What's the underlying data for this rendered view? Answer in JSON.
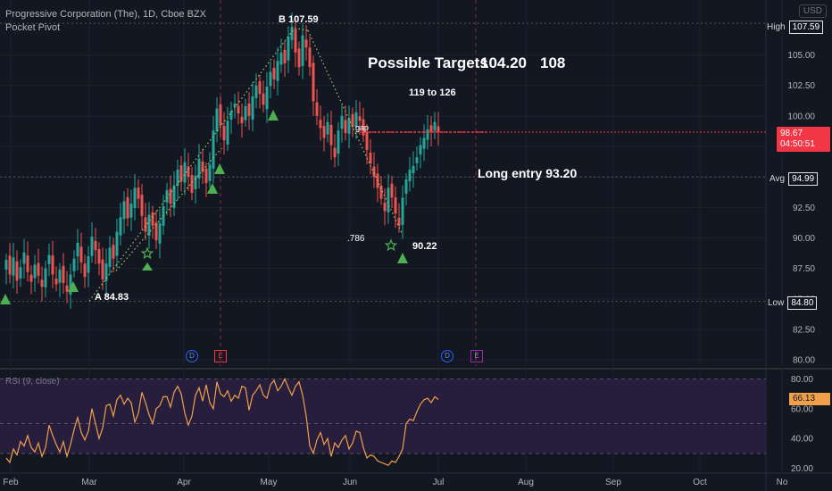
{
  "header": {
    "symbol_line": "Progressive Corporation (The), 1D, Cboe BZX",
    "indicator": "Pocket Pivot",
    "currency": "USD"
  },
  "annotations": {
    "targets_label": "Possible Targets",
    "target_1": "104.20",
    "target_2": "108",
    "target_range": "119 to 126",
    "long_entry": "Long entry 93.20",
    "point_b": "B  107.59",
    "point_a": "A  84.83",
    "fib": ".786",
    "low_point": "90.22",
    "gap": "gap"
  },
  "tags": {
    "high_label": "High",
    "high_value": "107.59",
    "avg_label": "Avg",
    "avg_value": "94.99",
    "low_label": "Low",
    "low_value": "84.80",
    "last_price": "98.67",
    "countdown": "04:50:51",
    "rsi_value": "66.13"
  },
  "events": {
    "dividend": "D",
    "earnings": "E"
  },
  "rsi": {
    "label": "RSI (9, close)",
    "upper": 80,
    "mid": 50,
    "lower": 30
  },
  "colors": {
    "background": "#131722",
    "up": "#26a69a",
    "down": "#ef5350",
    "signal": "#4caf50",
    "rsi_line": "#f0a04b",
    "rsi_band": "#2a1e3f"
  },
  "chart_data": {
    "type": "candlestick",
    "price_axis": {
      "ylim": [
        79.5,
        109.5
      ],
      "ticks": [
        "80.00",
        "82.50",
        "85.00",
        "87.50",
        "90.00",
        "92.50",
        "95.00",
        "97.50",
        "100.00",
        "102.50",
        "105.00"
      ]
    },
    "rsi_axis": {
      "ylim": [
        18,
        85
      ],
      "ticks": [
        "20.00",
        "40.00",
        "60.00",
        "80.00"
      ]
    },
    "x_labels": [
      "Feb",
      "Mar",
      "Apr",
      "May",
      "Jun",
      "Jul",
      "Aug",
      "Sep",
      "Oct",
      "No"
    ],
    "close": [
      88.2,
      87.0,
      88.4,
      86.5,
      87.6,
      88.8,
      87.2,
      86.4,
      87.8,
      86.9,
      86.0,
      87.5,
      88.6,
      87.0,
      86.2,
      87.4,
      86.3,
      85.6,
      87.0,
      88.3,
      89.6,
      88.0,
      86.8,
      88.5,
      90.1,
      89.0,
      87.9,
      86.6,
      87.9,
      89.2,
      88.3,
      90.5,
      91.7,
      93.0,
      91.6,
      92.8,
      94.1,
      93.2,
      91.8,
      90.5,
      91.9,
      91.0,
      89.8,
      91.2,
      92.6,
      93.9,
      92.8,
      94.3,
      95.6,
      94.6,
      96.2,
      95.0,
      93.7,
      95.1,
      96.5,
      95.4,
      94.5,
      96.0,
      98.8,
      100.6,
      99.2,
      98.0,
      99.6,
      100.4,
      101.0,
      100.2,
      99.4,
      100.8,
      100.0,
      101.6,
      102.5,
      101.8,
      100.9,
      102.4,
      103.6,
      103.0,
      104.5,
      105.2,
      104.3,
      106.5,
      107.3,
      105.2,
      104.0,
      106.6,
      105.6,
      104.0,
      101.2,
      100.0,
      99.0,
      98.2,
      99.5,
      97.6,
      96.6,
      98.8,
      100.0,
      98.6,
      99.8,
      99.1,
      100.3,
      99.6,
      98.4,
      97.2,
      96.1,
      95.0,
      94.1,
      93.2,
      92.2,
      94.1,
      93.3,
      92.0,
      91.0,
      93.3,
      94.8,
      95.6,
      95.9,
      96.6,
      97.6,
      98.2,
      98.9,
      98.7,
      99.5,
      98.67
    ],
    "rsi": [
      27,
      24,
      33,
      29,
      38,
      35,
      42,
      34,
      31,
      37,
      28,
      34,
      49,
      42,
      36,
      31,
      38,
      28,
      36,
      46,
      54,
      44,
      39,
      45,
      60,
      50,
      40,
      47,
      62,
      63,
      55,
      66,
      69,
      63,
      67,
      64,
      51,
      57,
      71,
      64,
      56,
      50,
      60,
      62,
      68,
      68,
      61,
      71,
      75,
      70,
      57,
      49,
      55,
      69,
      74,
      65,
      76,
      64,
      60,
      78,
      70,
      68,
      72,
      65,
      69,
      67,
      75,
      74,
      59,
      69,
      72,
      76,
      69,
      67,
      76,
      79,
      72,
      75,
      80,
      74,
      69,
      75,
      78,
      69,
      55,
      35,
      30,
      39,
      44,
      36,
      40,
      28,
      37,
      34,
      39,
      42,
      33,
      37,
      45,
      44,
      34,
      27,
      29,
      28,
      25,
      24,
      23,
      22,
      25,
      24,
      28,
      33,
      50,
      53,
      52,
      58,
      63,
      66,
      67,
      64,
      68,
      66.13
    ]
  }
}
